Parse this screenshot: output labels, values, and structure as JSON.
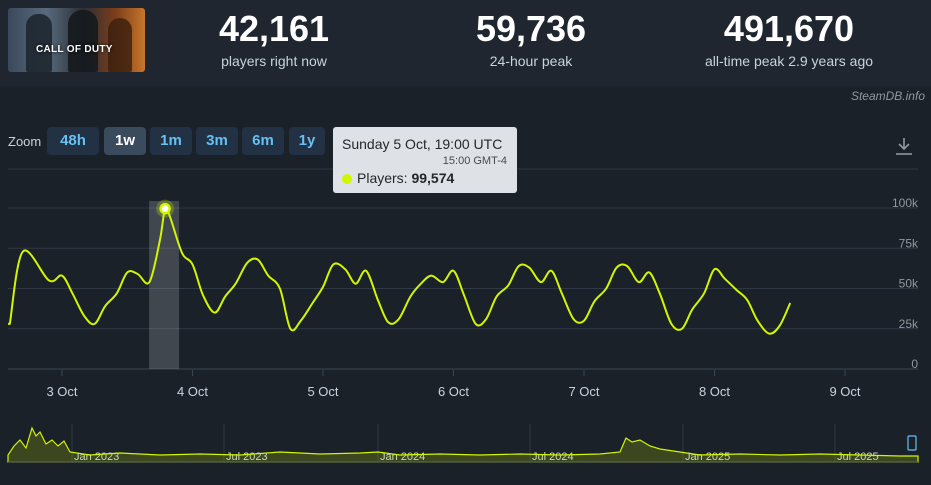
{
  "header": {
    "game_art": {
      "logo_text": "CALL OF DUTY"
    },
    "stats": [
      {
        "value": "42,161",
        "label": "players right now"
      },
      {
        "value": "59,736",
        "label": "24-hour peak"
      },
      {
        "value": "491,670",
        "label": "all-time peak 2.9 years ago"
      }
    ]
  },
  "brand": "SteamDB.info",
  "zoom": {
    "label": "Zoom",
    "buttons": [
      "48h",
      "1w",
      "1m",
      "3m",
      "6m",
      "1y"
    ],
    "active": "1w"
  },
  "icons": {
    "download": "download-icon"
  },
  "tooltip": {
    "title": "Sunday 5 Oct, 19:00 UTC",
    "local_time": "15:00 GMT-4",
    "series_label": "Players:",
    "value": "99,574"
  },
  "colors": {
    "line": "#d2f500",
    "background": "#1b2128",
    "accent_text": "#66c0f4"
  },
  "chart_data": {
    "type": "line",
    "ylim": [
      0,
      100000
    ],
    "y_ticks": [
      "100k",
      "75k",
      "50k",
      "25k",
      "0"
    ],
    "x_ticks": [
      "3 Oct",
      "4 Oct",
      "5 Oct",
      "6 Oct",
      "7 Oct",
      "8 Oct",
      "9 Oct"
    ],
    "x_unit": "days since 2 Oct 00:00 UTC",
    "highlight": {
      "x": 3.79,
      "y": 99574
    },
    "series": [
      {
        "name": "Players",
        "x": [
          2.6,
          2.7,
          2.9,
          3.0,
          3.08,
          3.17,
          3.25,
          3.33,
          3.42,
          3.5,
          3.58,
          3.67,
          3.75,
          3.79,
          3.83,
          3.92,
          4.0,
          4.08,
          4.17,
          4.25,
          4.33,
          4.42,
          4.5,
          4.58,
          4.67,
          4.75,
          4.83,
          4.92,
          5.0,
          5.08,
          5.17,
          5.25,
          5.33,
          5.42,
          5.5,
          5.58,
          5.67,
          5.75,
          5.83,
          5.92,
          6.0,
          6.08,
          6.17,
          6.25,
          6.33,
          6.42,
          6.5,
          6.58,
          6.67,
          6.75,
          6.83,
          6.92,
          7.0,
          7.08,
          7.17,
          7.25,
          7.33,
          7.42,
          7.5,
          7.58,
          7.67,
          7.75,
          7.83,
          7.92,
          8.0,
          8.08,
          8.17,
          8.25,
          8.33,
          8.42,
          8.5,
          8.58
        ],
        "values": [
          28000,
          73000,
          55000,
          58000,
          47000,
          33000,
          28000,
          39000,
          47000,
          60000,
          59000,
          54000,
          80000,
          99574,
          94000,
          72000,
          65000,
          46000,
          35000,
          45000,
          53000,
          66000,
          68000,
          58000,
          50000,
          25000,
          30000,
          41000,
          51000,
          65000,
          62000,
          53000,
          61000,
          43000,
          29000,
          31000,
          45000,
          53000,
          58000,
          54000,
          61000,
          46000,
          28000,
          31000,
          45000,
          52000,
          64000,
          63000,
          54000,
          61000,
          47000,
          31000,
          30000,
          42000,
          50000,
          63000,
          64000,
          54000,
          60000,
          47000,
          28000,
          25000,
          37000,
          47000,
          62000,
          56000,
          49000,
          43000,
          30000,
          22000,
          27000,
          41000
        ]
      }
    ],
    "navigator": {
      "x_ticks": [
        "Jan 2023",
        "Jul 2023",
        "Jan 2024",
        "Jul 2024",
        "Jan 2025",
        "Jul 2025"
      ]
    }
  }
}
